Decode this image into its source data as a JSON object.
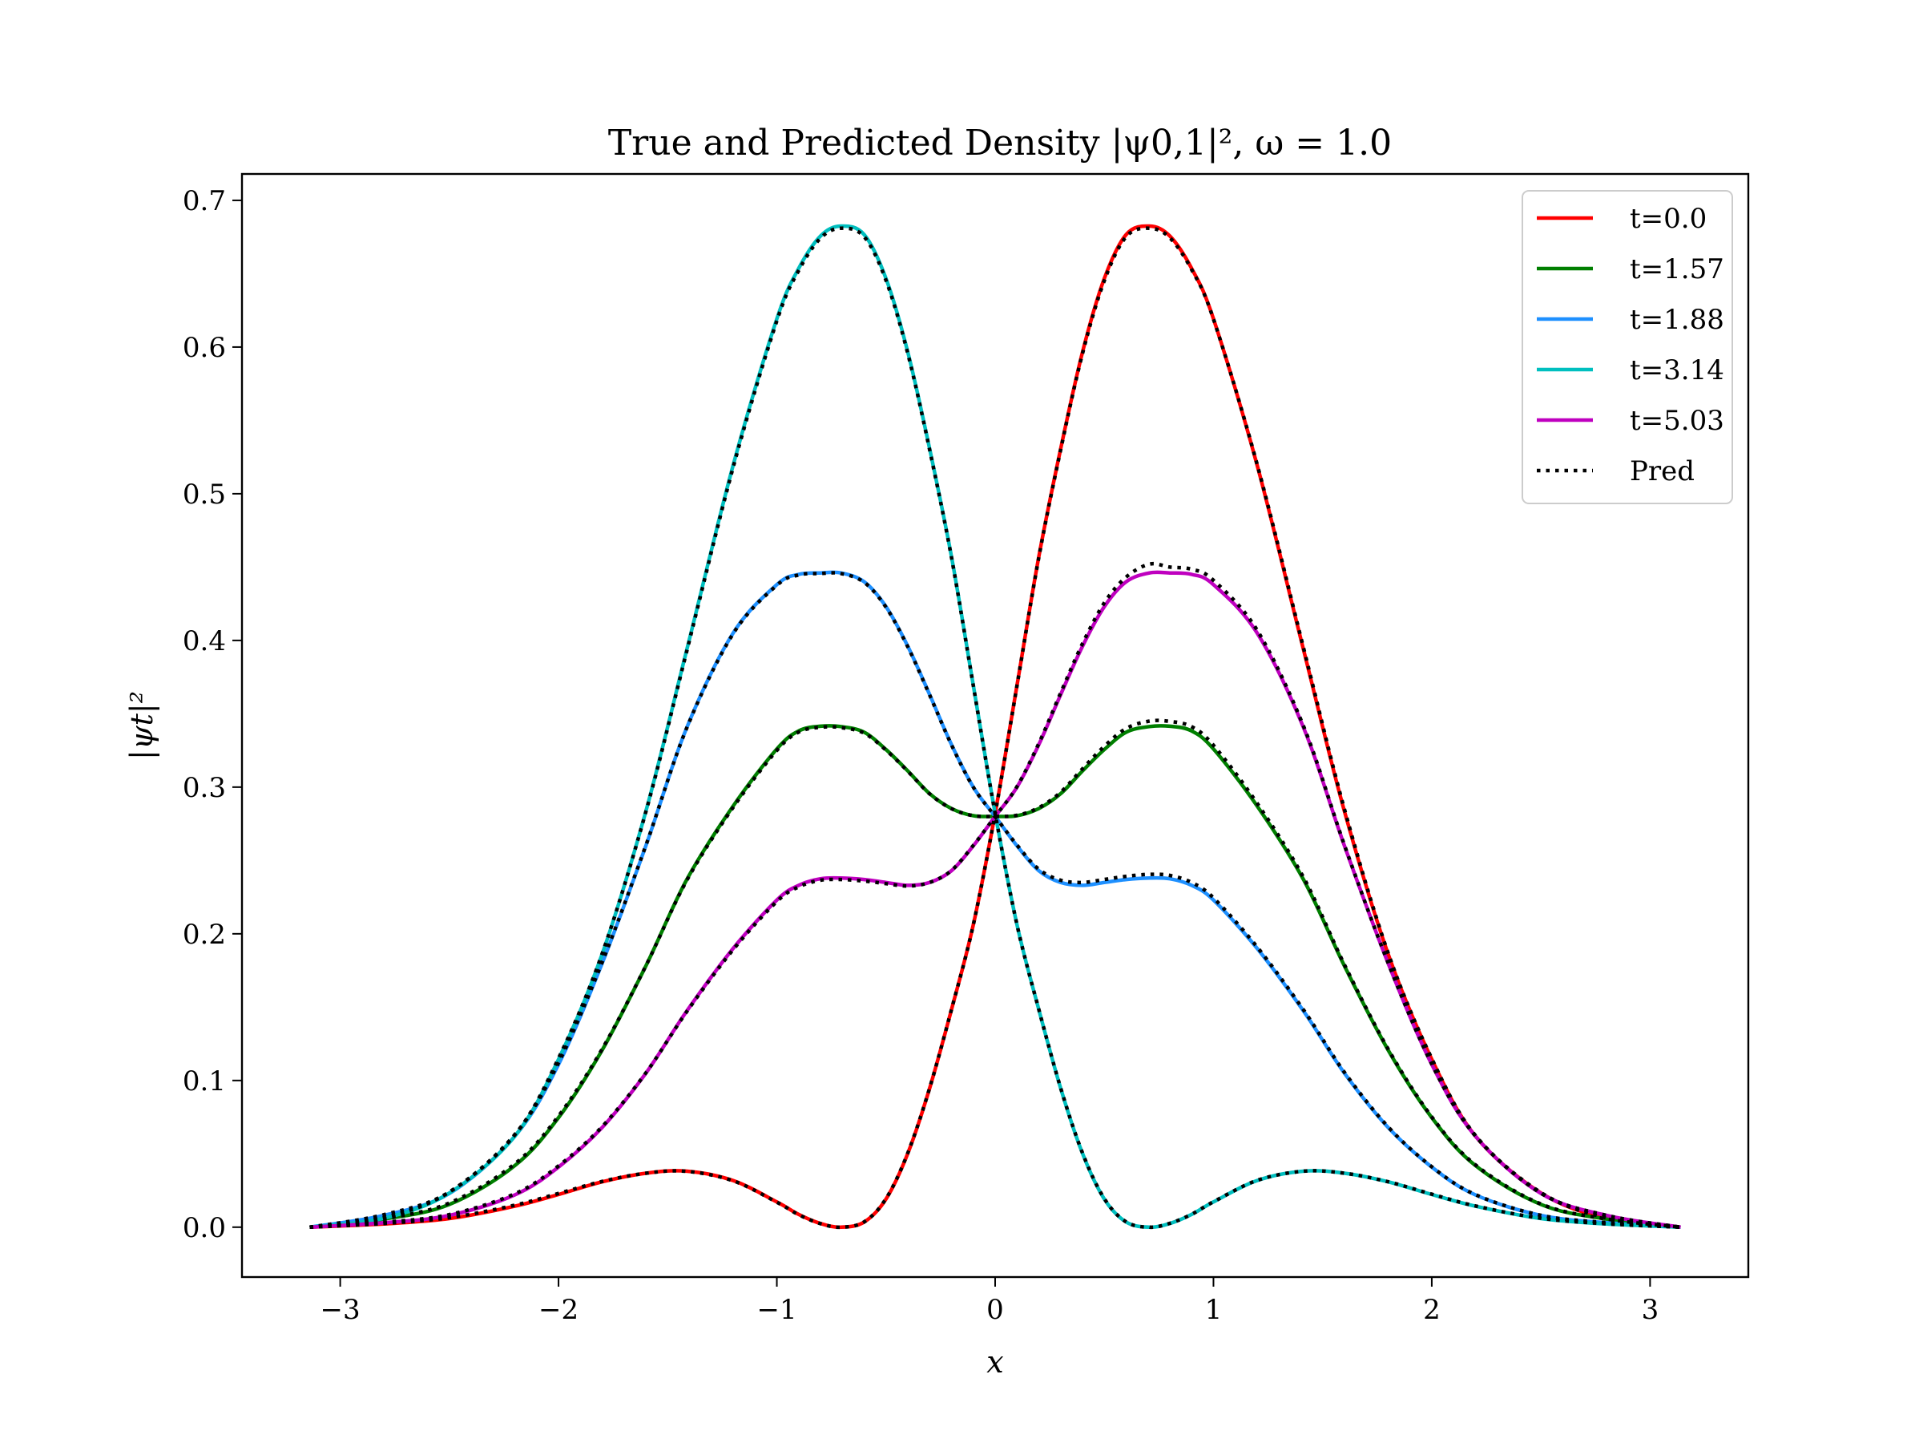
{
  "chart_data": {
    "type": "line",
    "title": "True and Predicted Density |ψ0,1|², ω = 1.0",
    "xlabel": "x",
    "ylabel": "|ψt|²",
    "xlim": [
      -3.45,
      3.45
    ],
    "ylim": [
      -0.034,
      0.718
    ],
    "x_ticks": [
      -3,
      -2,
      -1,
      0,
      1,
      2,
      3
    ],
    "x_tick_labels": [
      "−3",
      "−2",
      "−1",
      "0",
      "1",
      "2",
      "3"
    ],
    "y_ticks": [
      0.0,
      0.1,
      0.2,
      0.3,
      0.4,
      0.5,
      0.6,
      0.7
    ],
    "y_tick_labels": [
      "0.0",
      "0.1",
      "0.2",
      "0.3",
      "0.4",
      "0.5",
      "0.6",
      "0.7"
    ],
    "grid": false,
    "legend_position": "top-right",
    "legend": [
      "t=0.0",
      "t=1.57",
      "t=1.88",
      "t=3.14",
      "t=5.03",
      "Pred"
    ],
    "colors": {
      "t=0.0": "#ff0000",
      "t=1.57": "#007f00",
      "t=1.88": "#1e90ff",
      "t=3.14": "#00bfbf",
      "t=5.03": "#bf00bf",
      "Pred": "#000000"
    },
    "x": [
      -3.14,
      -2.8,
      -2.5,
      -2.2,
      -2.0,
      -1.8,
      -1.6,
      -1.414,
      -1.2,
      -1.0,
      -0.9,
      -0.8,
      -0.707,
      -0.6,
      -0.5,
      -0.4,
      -0.3,
      -0.2,
      -0.1,
      0.0,
      0.1,
      0.2,
      0.3,
      0.4,
      0.5,
      0.6,
      0.707,
      0.8,
      0.9,
      1.0,
      1.2,
      1.414,
      1.6,
      1.8,
      2.0,
      2.2,
      2.5,
      2.8,
      3.14
    ],
    "series": [
      {
        "name": "t=0.0",
        "values": [
          0.0,
          0.0022,
          0.0059,
          0.0143,
          0.0223,
          0.0309,
          0.0368,
          0.0382,
          0.0318,
          0.0172,
          0.0087,
          0.0025,
          0.0,
          0.0035,
          0.0192,
          0.0503,
          0.0948,
          0.1483,
          0.2063,
          0.2821,
          0.3692,
          0.4571,
          0.5305,
          0.5965,
          0.6467,
          0.6767,
          0.6825,
          0.6757,
          0.6536,
          0.6192,
          0.5194,
          0.3927,
          0.2836,
          0.1863,
          0.1145,
          0.0621,
          0.0233,
          0.0061,
          0.0
        ]
      },
      {
        "name": "t=1.57",
        "values": [
          0.0,
          0.0055,
          0.0155,
          0.042,
          0.0747,
          0.1208,
          0.1781,
          0.2365,
          0.2871,
          0.326,
          0.3383,
          0.3415,
          0.3413,
          0.3374,
          0.3256,
          0.311,
          0.2955,
          0.2854,
          0.2805,
          0.28,
          0.2805,
          0.2854,
          0.2955,
          0.311,
          0.3256,
          0.3374,
          0.3413,
          0.3415,
          0.3383,
          0.326,
          0.2871,
          0.2365,
          0.1781,
          0.1208,
          0.0747,
          0.042,
          0.0155,
          0.0055,
          0.0
        ]
      },
      {
        "name": "t=1.88",
        "values": [
          0.0,
          0.008,
          0.023,
          0.062,
          0.111,
          0.18,
          0.26,
          0.34,
          0.405,
          0.438,
          0.445,
          0.446,
          0.446,
          0.44,
          0.423,
          0.396,
          0.363,
          0.329,
          0.3,
          0.28,
          0.26,
          0.243,
          0.235,
          0.233,
          0.235,
          0.237,
          0.238,
          0.2375,
          0.233,
          0.223,
          0.19,
          0.147,
          0.105,
          0.068,
          0.041,
          0.022,
          0.008,
          0.003,
          0.0
        ]
      },
      {
        "name": "t=3.14",
        "values": [
          0.0,
          0.0061,
          0.0233,
          0.0621,
          0.1145,
          0.1863,
          0.2836,
          0.3927,
          0.5194,
          0.6192,
          0.6536,
          0.6757,
          0.6825,
          0.6767,
          0.6467,
          0.5965,
          0.5305,
          0.4571,
          0.3692,
          0.2821,
          0.2063,
          0.1483,
          0.0948,
          0.0503,
          0.0192,
          0.0035,
          0.0,
          0.0025,
          0.0087,
          0.0172,
          0.0318,
          0.0382,
          0.0368,
          0.0309,
          0.0223,
          0.0143,
          0.0059,
          0.0022,
          0.0
        ]
      },
      {
        "name": "t=5.03",
        "values": [
          0.0,
          0.003,
          0.008,
          0.022,
          0.041,
          0.068,
          0.105,
          0.147,
          0.19,
          0.223,
          0.233,
          0.2375,
          0.238,
          0.237,
          0.235,
          0.233,
          0.235,
          0.243,
          0.26,
          0.28,
          0.3,
          0.329,
          0.363,
          0.396,
          0.423,
          0.44,
          0.446,
          0.446,
          0.445,
          0.438,
          0.405,
          0.34,
          0.26,
          0.18,
          0.111,
          0.062,
          0.023,
          0.008,
          0.0
        ]
      }
    ],
    "pred_series": [
      {
        "name": "Pred",
        "for": "t=0.0",
        "values": [
          0.0,
          0.0025,
          0.0065,
          0.015,
          0.023,
          0.0312,
          0.0368,
          0.0381,
          0.0316,
          0.017,
          0.0085,
          0.0024,
          0.0,
          0.0036,
          0.0195,
          0.0506,
          0.095,
          0.1484,
          0.2063,
          0.282,
          0.369,
          0.4566,
          0.5298,
          0.5955,
          0.6452,
          0.6752,
          0.681,
          0.6745,
          0.6528,
          0.619,
          0.52,
          0.394,
          0.285,
          0.187,
          0.115,
          0.0625,
          0.0236,
          0.0063,
          0.0
        ]
      },
      {
        "name": "Pred",
        "for": "t=1.57",
        "values": [
          0.0,
          0.0058,
          0.0165,
          0.0432,
          0.0758,
          0.1215,
          0.1782,
          0.236,
          0.2862,
          0.325,
          0.3375,
          0.3408,
          0.3406,
          0.3368,
          0.3252,
          0.3108,
          0.2954,
          0.2853,
          0.2805,
          0.28,
          0.2808,
          0.286,
          0.2965,
          0.3125,
          0.3278,
          0.34,
          0.345,
          0.3448,
          0.3412,
          0.3285,
          0.289,
          0.238,
          0.179,
          0.1215,
          0.0752,
          0.0425,
          0.0158,
          0.0056,
          0.0
        ]
      },
      {
        "name": "Pred",
        "for": "t=1.88",
        "values": [
          0.0,
          0.0085,
          0.024,
          0.0632,
          0.1122,
          0.1808,
          0.2603,
          0.3398,
          0.4046,
          0.4376,
          0.4446,
          0.4456,
          0.4456,
          0.4396,
          0.4226,
          0.3956,
          0.3627,
          0.3288,
          0.2999,
          0.28,
          0.2605,
          0.244,
          0.2365,
          0.235,
          0.237,
          0.2392,
          0.2405,
          0.2398,
          0.235,
          0.2245,
          0.191,
          0.1478,
          0.1056,
          0.0684,
          0.0412,
          0.0222,
          0.0081,
          0.0031,
          0.0
        ]
      },
      {
        "name": "Pred",
        "for": "t=3.14",
        "values": [
          0.0,
          0.0065,
          0.024,
          0.063,
          0.1152,
          0.1866,
          0.2832,
          0.3918,
          0.518,
          0.6178,
          0.6522,
          0.6742,
          0.681,
          0.6752,
          0.6454,
          0.5955,
          0.5298,
          0.4566,
          0.369,
          0.282,
          0.2063,
          0.1484,
          0.095,
          0.0506,
          0.0195,
          0.0036,
          0.0,
          0.0026,
          0.0088,
          0.0173,
          0.0319,
          0.0382,
          0.0368,
          0.031,
          0.0225,
          0.0145,
          0.0061,
          0.0023,
          0.0
        ]
      },
      {
        "name": "Pred",
        "for": "t=5.03",
        "values": [
          0.0,
          0.0033,
          0.0086,
          0.0228,
          0.0418,
          0.0686,
          0.1052,
          0.1466,
          0.1892,
          0.222,
          0.232,
          0.2365,
          0.237,
          0.236,
          0.2342,
          0.2326,
          0.235,
          0.2432,
          0.2603,
          0.28,
          0.3003,
          0.3298,
          0.3642,
          0.3978,
          0.4256,
          0.4432,
          0.452,
          0.45,
          0.4485,
          0.441,
          0.407,
          0.341,
          0.2605,
          0.1802,
          0.1112,
          0.0622,
          0.0231,
          0.0081,
          0.0
        ]
      }
    ]
  }
}
